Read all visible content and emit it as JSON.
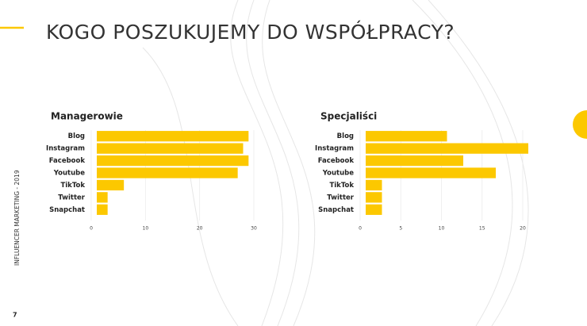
{
  "slide": {
    "title": "KOGO POSZUKUJEMY DO WSPÓŁPRACY?",
    "side_label": "INFLUENCER MARKETING - 2019",
    "page_number": "7"
  },
  "chart_data": [
    {
      "type": "hbar",
      "title": "Managerowie",
      "categories": [
        "Blog",
        "Instagram",
        "Facebook",
        "Youtube",
        "TikTok",
        "Twitter",
        "Snapchat"
      ],
      "values": [
        28,
        27,
        28,
        26,
        5,
        2,
        2
      ],
      "color": "#fcc800",
      "xlim": [
        0,
        30
      ],
      "xticks": [
        0,
        10,
        20,
        30
      ],
      "grid": true
    },
    {
      "type": "hbar",
      "title": "Specjaliści",
      "categories": [
        "Blog",
        "Instagram",
        "Facebook",
        "Youtube",
        "TikTok",
        "Twitter",
        "Snapchat"
      ],
      "values": [
        10,
        20,
        12,
        16,
        2,
        2,
        2
      ],
      "color": "#fcc800",
      "xlim": [
        0,
        20
      ],
      "xticks": [
        0,
        5,
        10,
        15,
        20
      ],
      "grid": true
    }
  ]
}
